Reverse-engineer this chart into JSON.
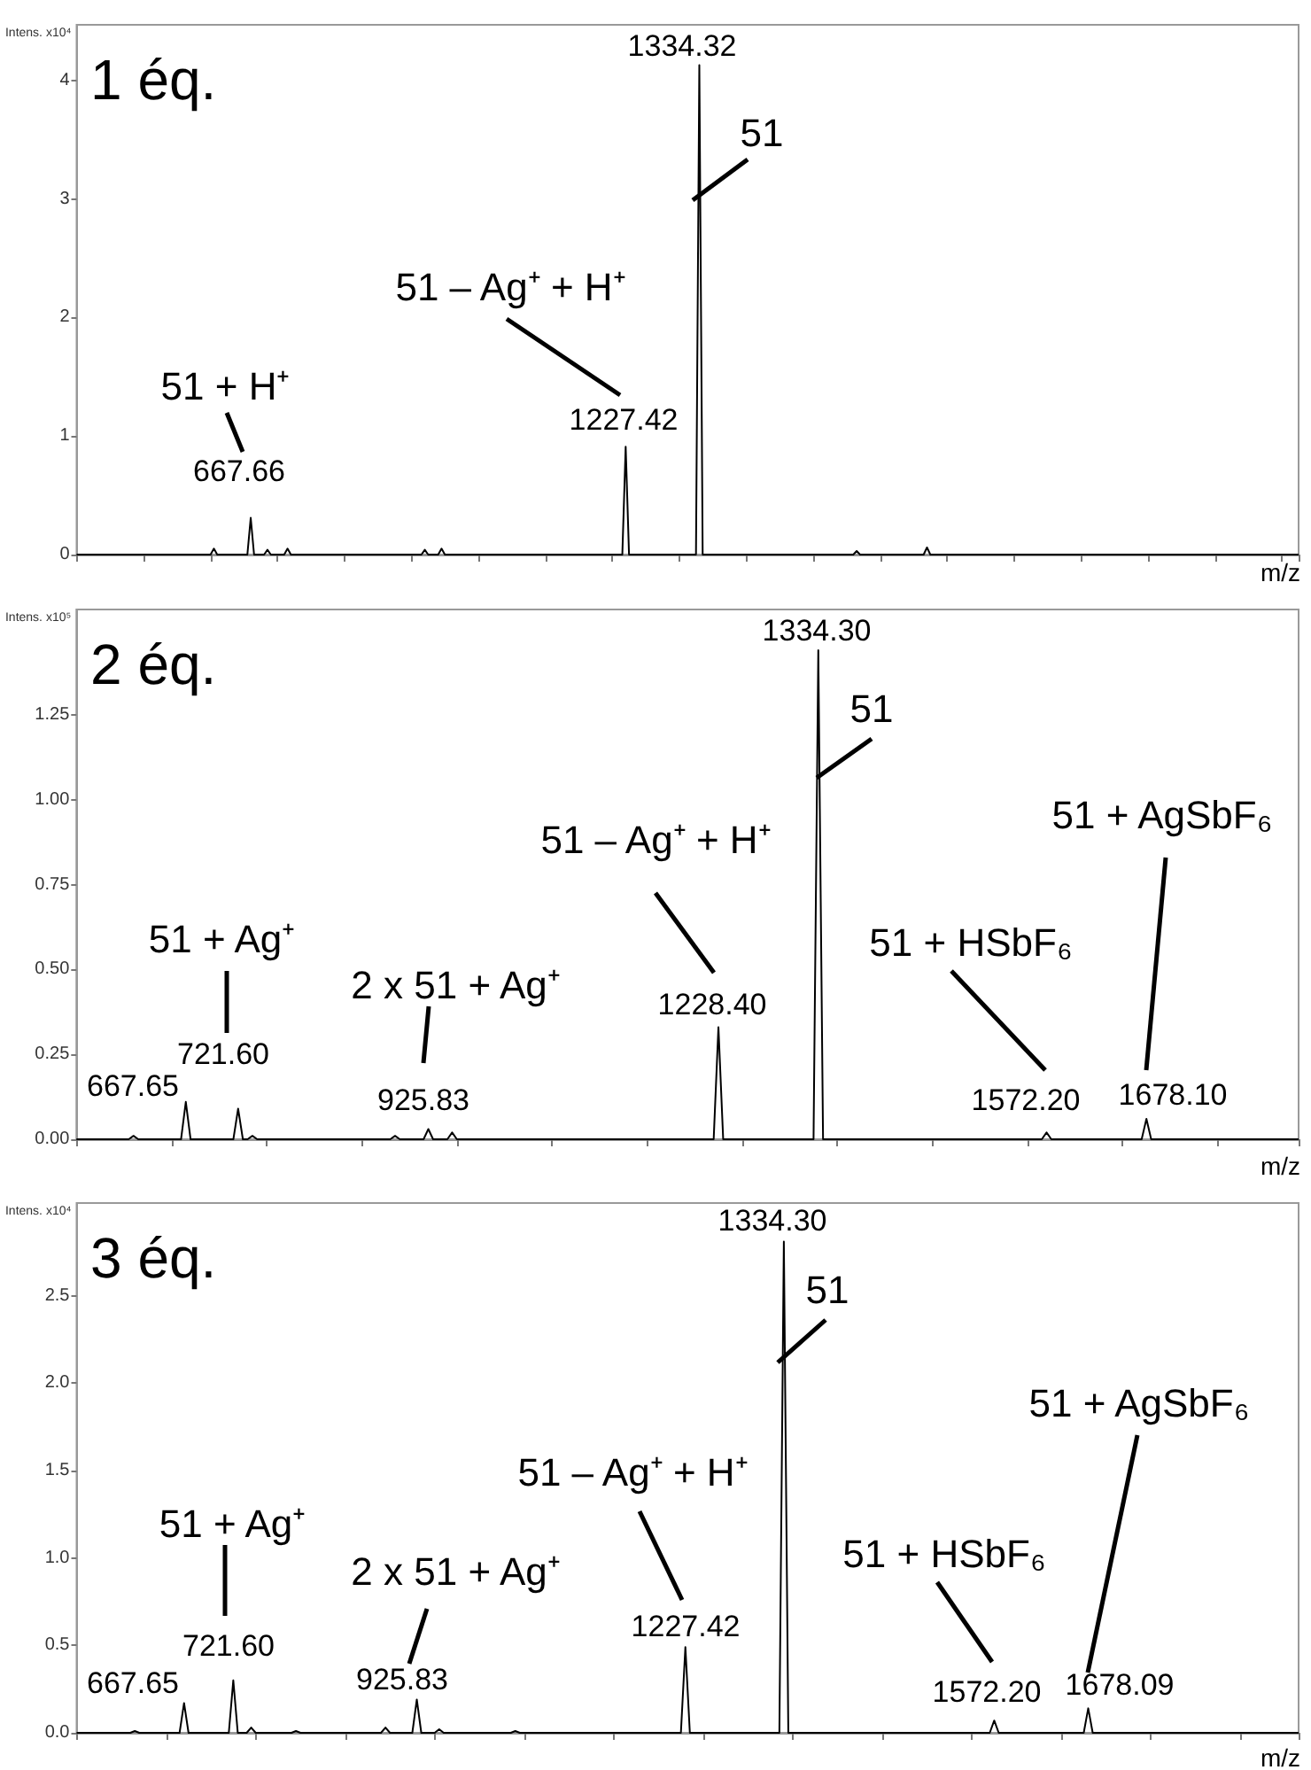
{
  "chart_data": [
    {
      "type": "line",
      "title": "1 éq.",
      "xlabel": "m/z",
      "ylabel": "Intens. x10⁴",
      "color": "#000000",
      "tick_labels": "y",
      "categories": [
        null,
        null,
        null,
        null,
        null,
        null,
        null,
        null,
        null,
        null,
        null,
        null,
        null,
        null,
        null,
        null,
        null,
        null,
        null,
        null,
        null,
        null,
        null,
        null,
        null,
        null,
        null,
        null,
        null,
        null,
        null,
        null,
        null,
        null,
        null,
        null,
        null,
        null,
        null,
        null,
        null,
        null,
        null,
        null,
        null,
        null,
        null,
        null,
        null,
        null,
        null,
        null,
        null,
        null,
        null,
        null,
        null,
        null,
        null,
        null,
        null,
        null,
        null,
        null,
        null,
        null,
        null,
        null,
        null,
        null,
        null,
        null,
        null,
        null,
        null,
        null,
        null,
        null,
        null,
        null,
        null,
        null,
        null,
        null,
        null,
        null,
        null,
        null,
        null,
        null,
        null,
        null,
        null,
        null,
        null,
        null,
        null,
        null,
        null,
        null,
        null,
        null,
        null,
        null,
        null,
        null,
        null,
        null,
        null,
        null,
        null,
        null,
        null,
        null,
        null,
        null,
        null,
        null,
        null,
        null,
        null,
        null,
        null,
        null,
        null,
        null,
        null,
        null,
        null,
        null,
        null,
        null,
        null,
        null,
        null,
        null,
        null,
        null,
        null,
        null,
        null,
        null,
        null,
        null,
        null,
        null,
        null,
        null,
        null,
        null,
        null,
        null,
        null,
        null,
        null,
        null,
        null,
        null,
        null,
        null,
        null,
        null,
        null,
        null,
        null,
        null,
        null,
        null,
        null,
        null,
        null,
        null,
        null,
        null,
        null,
        null,
        null,
        null,
        null,
        null,
        null,
        null,
        null,
        null,
        null,
        null,
        null,
        null,
        null,
        null,
        null,
        null,
        null,
        null,
        null,
        null,
        null,
        null,
        null,
        null,
        null,
        null,
        null,
        null,
        null,
        null,
        null,
        null,
        null,
        null,
        null,
        null,
        null,
        null,
        null,
        null,
        null,
        null,
        null,
        null,
        null,
        null,
        null,
        null,
        null,
        null,
        null,
        null,
        null,
        null,
        null,
        null,
        null,
        null,
        null,
        null,
        null,
        null,
        null,
        null,
        null,
        null,
        null,
        null,
        null,
        null,
        null,
        null,
        null,
        null,
        null,
        null,
        null,
        null,
        null,
        null,
        null,
        null,
        null,
        null,
        null,
        null,
        null,
        null,
        null,
        null,
        null,
        null,
        null,
        null,
        null,
        null,
        null,
        null,
        null,
        null,
        null,
        null,
        null,
        null,
        null,
        null,
        null,
        null,
        null,
        null,
        null,
        null,
        null,
        null,
        null,
        null,
        null,
        null,
        null,
        null,
        null,
        null,
        null,
        null,
        null,
        null,
        null,
        null,
        null,
        null,
        null,
        null,
        null,
        null,
        null,
        null,
        null,
        null,
        null,
        null,
        null,
        null,
        null,
        null,
        null,
        null,
        null,
        null,
        null,
        null,
        null,
        null,
        null,
        null,
        null,
        null,
        null,
        null,
        null,
        null,
        null,
        null,
        null,
        null,
        null,
        null,
        null,
        null,
        null,
        null,
        null,
        null,
        null,
        null,
        null,
        null,
        null,
        null,
        null,
        null,
        null,
        null,
        null,
        null,
        null,
        null,
        null,
        null,
        null,
        null
      ],
      "values": [
        0,
        0,
        0,
        0,
        0,
        0,
        0,
        0,
        0,
        0,
        0,
        0,
        0,
        0,
        0,
        0,
        0,
        0,
        0,
        0,
        0,
        0,
        0,
        0,
        0,
        0,
        0,
        0,
        0,
        0,
        0,
        0,
        0,
        0,
        0,
        0,
        0,
        0,
        0,
        0,
        0,
        0.05,
        0,
        0,
        0,
        0,
        0,
        0,
        0,
        0,
        0,
        0,
        0.31,
        0,
        0,
        0,
        0,
        0.04,
        0,
        0,
        0,
        0,
        0,
        0.05,
        0,
        0,
        0,
        0,
        0,
        0,
        0,
        0,
        0,
        0,
        0,
        0,
        0,
        0,
        0,
        0,
        0,
        0,
        0,
        0,
        0,
        0,
        0,
        0,
        0,
        0,
        0,
        0,
        0,
        0,
        0,
        0,
        0,
        0,
        0,
        0,
        0,
        0,
        0,
        0,
        0.04,
        0,
        0,
        0,
        0,
        0.05,
        0,
        0,
        0,
        0,
        0,
        0,
        0,
        0,
        0,
        0,
        0,
        0,
        0,
        0,
        0,
        0,
        0,
        0,
        0,
        0,
        0,
        0,
        0,
        0,
        0,
        0,
        0,
        0,
        0,
        0,
        0,
        0,
        0,
        0,
        0,
        0,
        0,
        0,
        0,
        0,
        0,
        0,
        0,
        0,
        0,
        0,
        0,
        0,
        0,
        0,
        0,
        0,
        0,
        0,
        0.91,
        0,
        0,
        0,
        0,
        0,
        0,
        0,
        0,
        0,
        0,
        0,
        0,
        0,
        0,
        0,
        0,
        0,
        0,
        0,
        0,
        0,
        4.13,
        0,
        0,
        0,
        0,
        0,
        0,
        0,
        0,
        0,
        0,
        0,
        0,
        0,
        0,
        0,
        0,
        0,
        0,
        0,
        0,
        0,
        0,
        0,
        0,
        0,
        0,
        0,
        0,
        0,
        0,
        0,
        0,
        0,
        0,
        0,
        0,
        0,
        0,
        0,
        0,
        0,
        0,
        0,
        0,
        0,
        0,
        0.03,
        0,
        0,
        0,
        0,
        0,
        0,
        0,
        0,
        0,
        0,
        0,
        0,
        0,
        0,
        0,
        0,
        0,
        0,
        0,
        0,
        0.06,
        0,
        0,
        0,
        0,
        0,
        0,
        0,
        0,
        0,
        0,
        0,
        0,
        0,
        0,
        0,
        0,
        0,
        0,
        0,
        0,
        0,
        0,
        0,
        0,
        0,
        0,
        0,
        0,
        0,
        0,
        0,
        0,
        0,
        0,
        0,
        0,
        0,
        0,
        0,
        0,
        0,
        0,
        0,
        0,
        0,
        0,
        0,
        0,
        0,
        0,
        0,
        0,
        0,
        0,
        0,
        0,
        0,
        0,
        0,
        0,
        0,
        0,
        0,
        0,
        0,
        0,
        0,
        0,
        0,
        0,
        0,
        0,
        0,
        0,
        0,
        0,
        0,
        0,
        0,
        0,
        0,
        0,
        0,
        0,
        0,
        0,
        0,
        0,
        0,
        0,
        0,
        0,
        0,
        0,
        0,
        0,
        0,
        0,
        0,
        0,
        0,
        0,
        0,
        0,
        0,
        0,
        0,
        0,
        0,
        0,
        0
      ],
      "ylim": [
        0,
        4.47
      ],
      "yticks": [
        0,
        1,
        2,
        3,
        4
      ],
      "annotations": [
        "1334.32",
        "1227.42",
        "667.66",
        "51 + H⁺",
        "51 – Ag⁺ + H⁺",
        "51"
      ]
    },
    {
      "type": "line",
      "title": "2 éq.",
      "xlabel": "m/z",
      "ylabel": "Intens. x10⁵",
      "color": "#000000",
      "tick_labels": "y",
      "categories": [
        null,
        null,
        null,
        null,
        null,
        null,
        null,
        null,
        null,
        null,
        null,
        null,
        null,
        null,
        null,
        null,
        null,
        null,
        null,
        null,
        null,
        null,
        null,
        null,
        null,
        null,
        null,
        null,
        null,
        null,
        null,
        null,
        null,
        null,
        null,
        null,
        null,
        null,
        null,
        null,
        null,
        null,
        null,
        null,
        null,
        null,
        null,
        null,
        null,
        null,
        null,
        null,
        null,
        null,
        null,
        null,
        null,
        null,
        null,
        null,
        null,
        null,
        null,
        null,
        null,
        null,
        null,
        null,
        null,
        null,
        null,
        null,
        null,
        null,
        null,
        null,
        null,
        null,
        null,
        null,
        null,
        null,
        null,
        null,
        null,
        null,
        null,
        null,
        null,
        null,
        null,
        null,
        null,
        null,
        null,
        null,
        null,
        null,
        null,
        null,
        null,
        null,
        null,
        null,
        null,
        null,
        null,
        null,
        null,
        null,
        null,
        null,
        null,
        null,
        null,
        null,
        null,
        null,
        null,
        null,
        null,
        null,
        null,
        null,
        null,
        null,
        null,
        null,
        null,
        null,
        null,
        null,
        null,
        null,
        null,
        null,
        null,
        null,
        null,
        null,
        null,
        null,
        null,
        null,
        null,
        null,
        null,
        null,
        null,
        null,
        null,
        null,
        null,
        null,
        null,
        null,
        null,
        null,
        null,
        null,
        null,
        null,
        null,
        null,
        null,
        null,
        null,
        null,
        null,
        null,
        null,
        null,
        null,
        null,
        null,
        null,
        null,
        null,
        null,
        null,
        null,
        null,
        null,
        null,
        null,
        null,
        null,
        null,
        null,
        null,
        null,
        null,
        null,
        null,
        null,
        null,
        null,
        null,
        null,
        null,
        null,
        null,
        null,
        null,
        null,
        null,
        null,
        null,
        null,
        null,
        null,
        null,
        null,
        null,
        null,
        null,
        null,
        null,
        null,
        null,
        null,
        null,
        null,
        null,
        null,
        null,
        null,
        null,
        null,
        null,
        null,
        null,
        null,
        null,
        null,
        null,
        null,
        null,
        null,
        null,
        null,
        null,
        null,
        null,
        null,
        null,
        null,
        null,
        null,
        null,
        null,
        null,
        null,
        null,
        null,
        null,
        null,
        null
      ],
      "values": [
        0,
        0,
        0,
        0,
        0,
        0,
        0,
        0,
        0,
        0,
        0,
        0,
        0.01,
        0,
        0,
        0,
        0,
        0,
        0,
        0,
        0,
        0,
        0,
        0.11,
        0,
        0,
        0,
        0,
        0,
        0,
        0,
        0,
        0,
        0,
        0.09,
        0,
        0,
        0.01,
        0,
        0,
        0,
        0,
        0,
        0,
        0,
        0,
        0,
        0,
        0,
        0,
        0,
        0,
        0,
        0,
        0,
        0,
        0,
        0,
        0,
        0,
        0,
        0,
        0,
        0,
        0,
        0,
        0,
        0.01,
        0,
        0,
        0,
        0,
        0,
        0,
        0.03,
        0,
        0,
        0,
        0,
        0.02,
        0,
        0,
        0,
        0,
        0,
        0,
        0,
        0,
        0,
        0,
        0,
        0,
        0,
        0,
        0,
        0,
        0,
        0,
        0,
        0,
        0,
        0,
        0,
        0,
        0,
        0,
        0,
        0,
        0,
        0,
        0,
        0,
        0,
        0,
        0,
        0,
        0,
        0,
        0,
        0,
        0,
        0,
        0,
        0,
        0,
        0,
        0,
        0,
        0,
        0,
        0,
        0,
        0,
        0,
        0,
        0.33,
        0,
        0,
        0,
        0,
        0,
        0,
        0,
        0,
        0,
        0,
        0,
        0,
        0,
        0,
        0,
        0,
        0,
        0,
        0,
        0,
        1.44,
        0,
        0,
        0,
        0,
        0,
        0,
        0,
        0,
        0,
        0,
        0,
        0,
        0,
        0,
        0,
        0,
        0,
        0,
        0,
        0,
        0,
        0,
        0,
        0,
        0,
        0,
        0,
        0,
        0,
        0,
        0,
        0,
        0,
        0,
        0,
        0,
        0,
        0,
        0,
        0,
        0,
        0,
        0,
        0,
        0,
        0,
        0,
        0.02,
        0,
        0,
        0,
        0,
        0,
        0,
        0,
        0,
        0,
        0,
        0,
        0,
        0,
        0,
        0,
        0,
        0,
        0,
        0,
        0,
        0.06,
        0,
        0,
        0,
        0,
        0,
        0,
        0,
        0,
        0,
        0,
        0,
        0,
        0,
        0,
        0,
        0,
        0,
        0,
        0,
        0,
        0,
        0,
        0,
        0,
        0,
        0,
        0,
        0,
        0,
        0,
        0,
        0
      ],
      "ylim": [
        0,
        1.56
      ],
      "yticks": [
        {
          "value": 0,
          "label": "0.00"
        },
        {
          "value": 0.25,
          "label": "0.25"
        },
        {
          "value": 0.5,
          "label": "0.50"
        },
        {
          "value": 0.75,
          "label": "0.75"
        },
        {
          "value": 1,
          "label": "1.00"
        },
        {
          "value": 1.25,
          "label": "1.25"
        }
      ],
      "annotations": [
        "667.65",
        "721.60",
        "925.83",
        "1228.40",
        "1334.30",
        "1572.20",
        "1678.10",
        "51 + Ag⁺",
        "2 x 51 + Ag⁺",
        "51 – Ag⁺ + H⁺",
        "51",
        "51 + HSbF₆",
        "51 + AgSbF₆"
      ]
    },
    {
      "type": "line",
      "title": "3 éq.",
      "xlabel": "m/z",
      "ylabel": "Intens. x10⁴",
      "color": "#000000",
      "tick_labels": "y",
      "categories": [
        null,
        null,
        null,
        null,
        null,
        null,
        null,
        null,
        null,
        null,
        null,
        null,
        null,
        null,
        null,
        null,
        null,
        null,
        null,
        null,
        null,
        null,
        null,
        null,
        null,
        null,
        null,
        null,
        null,
        null,
        null,
        null,
        null,
        null,
        null,
        null,
        null,
        null,
        null,
        null,
        null,
        null,
        null,
        null,
        null,
        null,
        null,
        null,
        null,
        null,
        null,
        null,
        null,
        null,
        null,
        null,
        null,
        null,
        null,
        null,
        null,
        null,
        null,
        null,
        null,
        null,
        null,
        null,
        null,
        null,
        null,
        null,
        null,
        null,
        null,
        null,
        null,
        null,
        null,
        null,
        null,
        null,
        null,
        null,
        null,
        null,
        null,
        null,
        null,
        null,
        null,
        null,
        null,
        null,
        null,
        null,
        null,
        null,
        null,
        null,
        null,
        null,
        null,
        null,
        null,
        null,
        null,
        null,
        null,
        null,
        null,
        null,
        null,
        null,
        null,
        null,
        null,
        null,
        null,
        null,
        null,
        null,
        null,
        null,
        null,
        null,
        null,
        null,
        null,
        null,
        null,
        null,
        null,
        null,
        null,
        null,
        null,
        null,
        null,
        null,
        null,
        null,
        null,
        null,
        null,
        null,
        null,
        null,
        null,
        null,
        null,
        null,
        null,
        null,
        null,
        null,
        null,
        null,
        null,
        null,
        null,
        null,
        null,
        null,
        null,
        null,
        null,
        null,
        null,
        null,
        null,
        null,
        null,
        null,
        null,
        null,
        null,
        null,
        null,
        null,
        null,
        null,
        null,
        null,
        null,
        null,
        null,
        null,
        null,
        null,
        null,
        null,
        null,
        null,
        null,
        null,
        null,
        null,
        null,
        null,
        null,
        null,
        null,
        null,
        null,
        null,
        null,
        null,
        null,
        null,
        null,
        null,
        null,
        null,
        null,
        null,
        null,
        null,
        null,
        null,
        null,
        null,
        null,
        null,
        null,
        null,
        null,
        null,
        null,
        null,
        null,
        null,
        null,
        null,
        null,
        null,
        null,
        null,
        null,
        null,
        null,
        null,
        null,
        null,
        null,
        null,
        null,
        null,
        null,
        null,
        null,
        null,
        null,
        null,
        null,
        null,
        null,
        null,
        null,
        null,
        null,
        null,
        null,
        null,
        null,
        null,
        null,
        null,
        null,
        null,
        null,
        null,
        null,
        null
      ],
      "values": [
        0,
        0,
        0,
        0,
        0,
        0,
        0,
        0,
        0,
        0,
        0,
        0,
        0,
        0.01,
        0,
        0,
        0,
        0,
        0,
        0,
        0,
        0,
        0,
        0,
        0.17,
        0,
        0,
        0,
        0,
        0,
        0,
        0,
        0,
        0,
        0,
        0.3,
        0,
        0,
        0,
        0.03,
        0,
        0,
        0,
        0,
        0,
        0,
        0,
        0,
        0,
        0.01,
        0,
        0,
        0,
        0,
        0,
        0,
        0,
        0,
        0,
        0,
        0,
        0,
        0,
        0,
        0,
        0,
        0,
        0,
        0,
        0.03,
        0,
        0,
        0,
        0,
        0,
        0,
        0.19,
        0,
        0,
        0,
        0,
        0.02,
        0,
        0,
        0,
        0,
        0,
        0,
        0,
        0,
        0,
        0,
        0,
        0,
        0,
        0,
        0,
        0,
        0.01,
        0,
        0,
        0,
        0,
        0,
        0,
        0,
        0,
        0,
        0,
        0,
        0,
        0,
        0,
        0,
        0,
        0,
        0,
        0,
        0,
        0,
        0,
        0,
        0,
        0,
        0,
        0,
        0,
        0,
        0,
        0,
        0,
        0,
        0,
        0,
        0,
        0,
        0.49,
        0,
        0,
        0,
        0,
        0,
        0,
        0,
        0,
        0,
        0,
        0,
        0,
        0,
        0,
        0,
        0,
        0,
        0,
        0,
        0,
        0,
        2.81,
        0,
        0,
        0,
        0,
        0,
        0,
        0,
        0,
        0,
        0,
        0,
        0,
        0,
        0,
        0,
        0,
        0,
        0,
        0,
        0,
        0,
        0,
        0,
        0,
        0,
        0,
        0,
        0,
        0,
        0,
        0,
        0,
        0,
        0,
        0,
        0,
        0,
        0,
        0,
        0,
        0,
        0,
        0,
        0,
        0,
        0,
        0.07,
        0,
        0,
        0,
        0,
        0,
        0,
        0,
        0,
        0,
        0,
        0,
        0,
        0,
        0,
        0,
        0,
        0,
        0,
        0,
        0,
        0.14,
        0,
        0,
        0,
        0,
        0,
        0,
        0,
        0,
        0,
        0,
        0,
        0,
        0,
        0,
        0,
        0,
        0,
        0,
        0,
        0,
        0,
        0,
        0,
        0,
        0,
        0,
        0,
        0,
        0,
        0,
        0,
        0,
        0,
        0,
        0,
        0,
        0,
        0,
        0,
        0,
        0,
        0,
        0,
        0,
        0,
        0,
        0
      ],
      "ylim": [
        0,
        3.03
      ],
      "yticks": [
        {
          "value": 0,
          "label": "0.0"
        },
        {
          "value": 0.5,
          "label": "0.5"
        },
        {
          "value": 1,
          "label": "1.0"
        },
        {
          "value": 1.5,
          "label": "1.5"
        },
        {
          "value": 2,
          "label": "2.0"
        },
        {
          "value": 2.5,
          "label": "2.5"
        }
      ],
      "annotations": [
        "667.65",
        "721.60",
        "925.83",
        "1227.42",
        "1334.30",
        "1572.20",
        "1678.09",
        "51 + Ag⁺",
        "2 x 51 + Ag⁺",
        "51 – Ag⁺ + H⁺",
        "51",
        "51 + HSbF₆",
        "51 + AgSbF₆"
      ]
    }
  ]
}
